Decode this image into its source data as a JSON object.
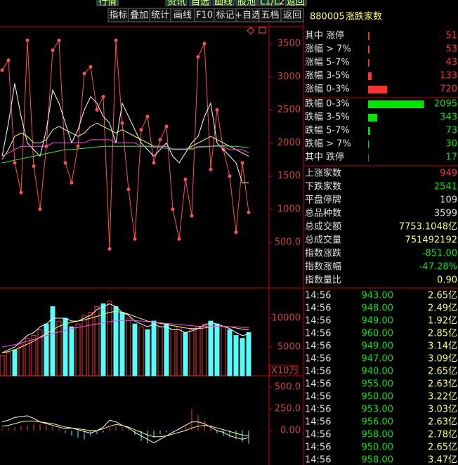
{
  "top_tabs": [
    "行情",
    "资讯",
    "自选",
    "画线",
    "股池",
    "L1/L2",
    "返回"
  ],
  "toolbar": [
    "指标",
    "叠加",
    "统计",
    "画线",
    "F10",
    "标记",
    "+自选",
    "五档",
    "返回"
  ],
  "chart_data": [
    {
      "type": "line",
      "ylim": [
        -190,
        3735
      ],
      "yticks": [
        3500,
        3000,
        2500,
        2000,
        1500,
        1000,
        {
          "value": 500,
          "label": "500.0"
        }
      ],
      "series": [
        {
          "color": "#ff5050",
          "markers": true,
          "values": [
            3100,
            3250,
            1700,
            1250,
            3550,
            1650,
            1000,
            1950,
            3400,
            3550,
            1700,
            1400,
            1950,
            3050,
            3150,
            2500,
            2700,
            400,
            3550,
            2300,
            1300,
            550,
            2200,
            2400,
            1700,
            2050,
            2250,
            1000,
            550,
            1450,
            900,
            3300,
            3500,
            1600,
            2500,
            1900,
            1500,
            650,
            1700,
            950
          ]
        },
        {
          "color": "#ffffff",
          "values": [
            1800,
            2300,
            2900,
            2400,
            2000,
            1900,
            1800,
            2200,
            2800,
            2600,
            2300,
            2000,
            2200,
            2500,
            2700,
            2600,
            2400,
            2300,
            2000,
            2600,
            2400,
            2200,
            2000,
            1900,
            1800,
            1900,
            2000,
            1800,
            1700,
            1850,
            2000,
            2100,
            2400,
            2600,
            2000,
            1900,
            1800,
            1700,
            1400,
            1400
          ]
        },
        {
          "color": "#ffff66",
          "values": [
            1750,
            1900,
            2100,
            2150,
            2100,
            2000,
            2000,
            2050,
            2200,
            2250,
            2200,
            2150,
            2100,
            2150,
            2250,
            2300,
            2250,
            2200,
            2150,
            2200,
            2150,
            2100,
            2050,
            2000,
            1950,
            1950,
            1950,
            1900,
            1900,
            1900,
            1950,
            2000,
            2050,
            2100,
            2050,
            2000,
            1950,
            1900,
            1850,
            1800
          ]
        },
        {
          "color": "#ff44ff",
          "values": [
            1800,
            1850,
            1900,
            1950,
            1950,
            1950,
            1950,
            1950,
            2000,
            2000,
            2000,
            2000,
            2000,
            2000,
            2050,
            2050,
            2050,
            2050,
            2000,
            2000,
            2000,
            2000,
            1950,
            1950,
            1950,
            1950,
            1950,
            1900,
            1900,
            1900,
            1900,
            1950,
            1950,
            1950,
            1950,
            1950,
            1900,
            1900,
            1900,
            1850
          ]
        },
        {
          "color": "#33ee33",
          "values": [
            1700,
            1720,
            1740,
            1760,
            1780,
            1800,
            1820,
            1840,
            1860,
            1880,
            1900,
            1900,
            1910,
            1920,
            1930,
            1940,
            1950,
            1950,
            1950,
            1950,
            1950,
            1950,
            1950,
            1950,
            1940,
            1930,
            1920,
            1910,
            1910,
            1910,
            1920,
            1930,
            1940,
            1950,
            1960,
            1960,
            1950,
            1950,
            1940,
            1930
          ]
        }
      ]
    },
    {
      "type": "bar",
      "unit": "X10万",
      "ylim": [
        0,
        15000
      ],
      "yticks": [
        10000,
        5000
      ],
      "hollow": "#ff3232",
      "values": [
        3500,
        4000,
        4500,
        5500,
        6500,
        7000,
        8000,
        9000,
        12000,
        9500,
        10000,
        8500,
        9000,
        10500,
        11000,
        12000,
        12500,
        13000,
        12000,
        11000,
        10000,
        9000,
        8500,
        8000,
        9500,
        8500,
        9000,
        8000,
        8500,
        7500,
        8000,
        8500,
        9000,
        9500,
        9000,
        8500,
        8000,
        7000,
        6500,
        7500
      ],
      "bar_colors": [
        "#ff3232",
        "#ff3232",
        "#54fcfc",
        "#ff3232",
        "#ff3232",
        "#ff3232",
        "#ff3232",
        "#54fcfc",
        "#54fcfc",
        "#ff3232",
        "#54fcfc",
        "#54fcfc",
        "#ff3232",
        "#ff3232",
        "#ff3232",
        "#ff3232",
        "#54fcfc",
        "#ff3232",
        "#54fcfc",
        "#54fcfc",
        "#ff3232",
        "#54fcfc",
        "#ff3232",
        "#54fcfc",
        "#54fcfc",
        "#ff3232",
        "#54fcfc",
        "#ff3232",
        "#ff3232",
        "#54fcfc",
        "#ff3232",
        "#ff3232",
        "#ff3232",
        "#54fcfc",
        "#54fcfc",
        "#ff3232",
        "#54fcfc",
        "#54fcfc",
        "#54fcfc",
        "#54fcfc"
      ],
      "series": [
        {
          "color": "#ffffff",
          "values": [
            4000,
            4500,
            5000,
            6000,
            7000,
            7500,
            8500,
            9000,
            10000,
            10000,
            10000,
            9500,
            9500,
            10000,
            10500,
            11500,
            12000,
            12500,
            12000,
            11000,
            10500,
            9500,
            9000,
            8500,
            9000,
            8500,
            8500,
            8000,
            8000,
            7500,
            7800,
            8200,
            8800,
            9200,
            9000,
            8600,
            8200,
            7500,
            7000,
            7200
          ]
        },
        {
          "color": "#ffff66",
          "values": [
            4000,
            4200,
            4500,
            5000,
            5500,
            6000,
            6700,
            7300,
            8000,
            8600,
            9000,
            9300,
            9500,
            9700,
            10000,
            10300,
            10700,
            11000,
            11200,
            11000,
            10700,
            10300,
            9900,
            9500,
            9300,
            9100,
            8900,
            8700,
            8500,
            8300,
            8200,
            8200,
            8300,
            8500,
            8600,
            8600,
            8500,
            8300,
            8100,
            8000
          ]
        },
        {
          "color": "#ff44ff",
          "values": [
            5000,
            5200,
            5400,
            5700,
            6000,
            6300,
            6600,
            7000,
            7300,
            7600,
            7900,
            8200,
            8400,
            8600,
            8800,
            9000,
            9200,
            9400,
            9500,
            9600,
            9600,
            9600,
            9500,
            9400,
            9300,
            9200,
            9100,
            9000,
            8900,
            8800,
            8700,
            8600,
            8600,
            8600,
            8600,
            8600,
            8500,
            8500,
            8400,
            8400
          ]
        }
      ]
    },
    {
      "type": "bar",
      "ylim": [
        -395,
        613
      ],
      "yticks": [
        {
          "value": 500,
          "label": "500.0"
        },
        {
          "value": 250,
          "label": "250.0"
        },
        {
          "value": 0,
          "label": "0.00"
        }
      ],
      "values": [
        20,
        30,
        40,
        50,
        60,
        70,
        80,
        60,
        40,
        20,
        -30,
        -60,
        -80,
        -100,
        -60,
        -40,
        -20,
        30,
        50,
        40,
        20,
        -50,
        -120,
        -150,
        -80,
        -40,
        -20,
        -10,
        30,
        60,
        250,
        180,
        120,
        60,
        -30,
        -60,
        -80,
        -100,
        -130,
        -150
      ],
      "series": [
        {
          "color": "#ffffff",
          "values": [
            100,
            120,
            150,
            160,
            170,
            140,
            100,
            80,
            60,
            40,
            20,
            30,
            10,
            -10,
            -30,
            0,
            40,
            120,
            100,
            60,
            30,
            -20,
            -60,
            -100,
            -140,
            -100,
            -60,
            -20,
            20,
            60,
            100,
            100,
            80,
            40,
            0,
            -20,
            -60,
            -80,
            -100,
            -80
          ]
        },
        {
          "color": "#ffff66",
          "values": [
            50,
            60,
            80,
            100,
            110,
            110,
            100,
            90,
            80,
            60,
            40,
            30,
            20,
            10,
            0,
            0,
            20,
            50,
            70,
            60,
            40,
            10,
            -20,
            -50,
            -70,
            -70,
            -60,
            -40,
            -20,
            0,
            30,
            50,
            60,
            50,
            30,
            10,
            -10,
            -30,
            -50,
            -60
          ]
        }
      ]
    }
  ],
  "panel": {
    "code": "880005",
    "title": "涨跌家数",
    "breadth": [
      {
        "label": "其中 涨停",
        "value": 51,
        "color": "#ff3232"
      },
      {
        "label": "涨幅 > 7%",
        "value": 53,
        "color": "#ff3232"
      },
      {
        "label": "涨幅 5-7%",
        "value": 43,
        "color": "#ff3232"
      },
      {
        "label": "涨幅 3-5%",
        "value": 133,
        "color": "#ff3232"
      },
      {
        "label": "涨幅 0-3%",
        "value": 720,
        "color": "#ff3232"
      },
      {
        "label": "跌幅 0-3%",
        "value": 2095,
        "color": "#00e600"
      },
      {
        "label": "跌幅 3-5%",
        "value": 343,
        "color": "#00e600"
      },
      {
        "label": "跌幅 5-7%",
        "value": 73,
        "color": "#00e600"
      },
      {
        "label": "跌幅 > 7%",
        "value": 30,
        "color": "#00e600"
      },
      {
        "label": "其中 跌停",
        "value": 17,
        "color": "#00e600"
      }
    ],
    "stats": [
      {
        "label": "上涨家数",
        "value": "949",
        "color": "#ff3232"
      },
      {
        "label": "下跌家数",
        "value": "2541",
        "color": "#00e600"
      },
      {
        "label": "平盘停牌",
        "value": "109",
        "color": "#e0e0e0"
      },
      {
        "label": "总品种数",
        "value": "3599",
        "color": "#e0e0e0"
      },
      {
        "label": "总成交额",
        "value": "7753.1048亿",
        "color": "#ffff66"
      },
      {
        "label": "总成交量",
        "value": "751492192",
        "color": "#ffff66"
      },
      {
        "label": "指数涨跌",
        "value": "-851.00",
        "color": "#00e600"
      },
      {
        "label": "指数涨幅",
        "value": "-47.28%",
        "color": "#00e600"
      },
      {
        "label": "指数量比",
        "value": "0.90",
        "color": "#ffff66"
      }
    ],
    "ticks": [
      {
        "time": "14:56",
        "price": "943.00",
        "volume": "2.65亿"
      },
      {
        "time": "14:56",
        "price": "948.00",
        "volume": "2.49亿"
      },
      {
        "time": "14:56",
        "price": "949.00",
        "volume": "1.92亿"
      },
      {
        "time": "14:56",
        "price": "960.00",
        "volume": "2.85亿"
      },
      {
        "time": "14:56",
        "price": "949.00",
        "volume": "3.14亿"
      },
      {
        "time": "14:56",
        "price": "947.00",
        "volume": "3.09亿"
      },
      {
        "time": "14:56",
        "price": "940.00",
        "volume": "2.65亿"
      },
      {
        "time": "14:56",
        "price": "955.00",
        "volume": "2.63亿"
      },
      {
        "time": "14:56",
        "price": "950.00",
        "volume": "3.22亿"
      },
      {
        "time": "14:56",
        "price": "953.00",
        "volume": "3.03亿"
      },
      {
        "time": "14:56",
        "price": "956.00",
        "volume": "2.63亿"
      },
      {
        "time": "14:56",
        "price": "958.00",
        "volume": "2.78亿"
      },
      {
        "time": "14:56",
        "price": "950.00",
        "volume": "2.65亿"
      },
      {
        "time": "14:56",
        "price": "958.00",
        "volume": "3.47亿"
      }
    ]
  }
}
